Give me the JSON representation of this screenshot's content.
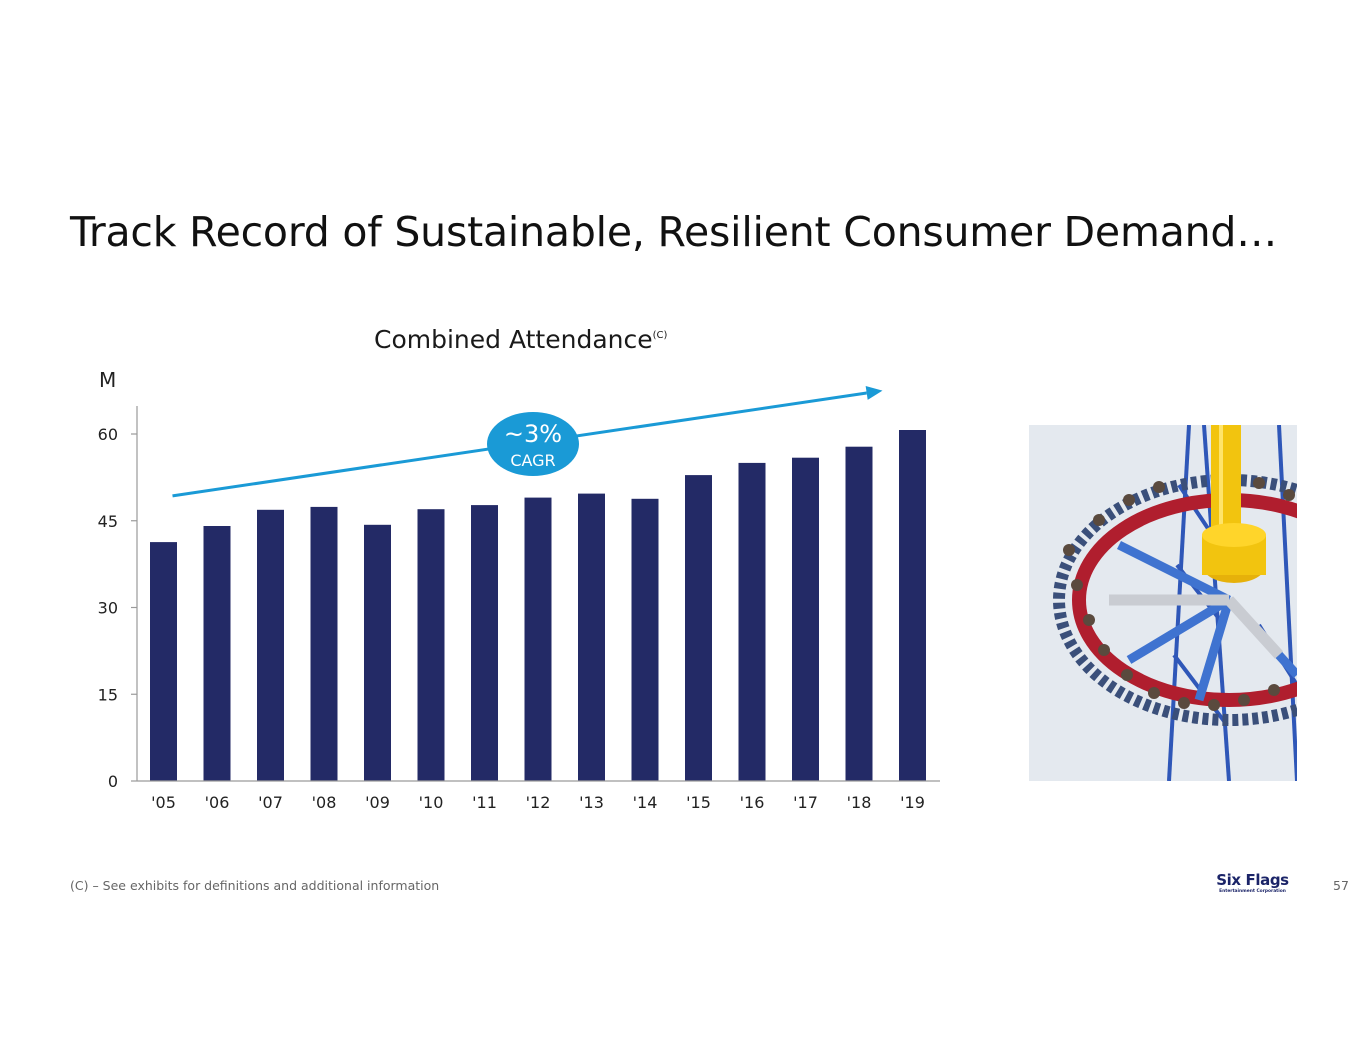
{
  "slide": {
    "title": "Track Record of Sustainable, Resilient Consumer Demand…",
    "footnote": "(C) – See exhibits for definitions and additional information",
    "page_number": "57",
    "logo_text": "Six Flags",
    "logo_subtext": "Entertainment Corporation",
    "colors": {
      "bar": "#232a66",
      "trend_arrow": "#1a9ad6",
      "cagr_badge": "#1a9ad6",
      "axis": "#9a9a9a"
    }
  },
  "chart_data": {
    "type": "bar",
    "title": "Combined Attendance",
    "title_superscript": "(C)",
    "ylabel": "M",
    "xlabel": "",
    "ylim": [
      0,
      65
    ],
    "yticks": [
      0,
      15,
      30,
      45,
      60
    ],
    "categories": [
      "'05",
      "'06",
      "'07",
      "'08",
      "'09",
      "'10",
      "'11",
      "'12",
      "'13",
      "'14",
      "'15",
      "'16",
      "'17",
      "'18",
      "'19"
    ],
    "series": [
      {
        "name": "Combined Attendance",
        "values": [
          41.3,
          44.1,
          46.9,
          47.4,
          44.3,
          47.0,
          47.7,
          49.0,
          49.7,
          48.8,
          52.9,
          55.0,
          55.9,
          57.8,
          60.7
        ]
      }
    ],
    "trend_arrow": {
      "from_category": "'05",
      "to_category": "'19",
      "from_value": 49.3,
      "to_value": 67.5
    },
    "annotation": {
      "value": "~3%",
      "label": "CAGR"
    },
    "grid": false
  }
}
